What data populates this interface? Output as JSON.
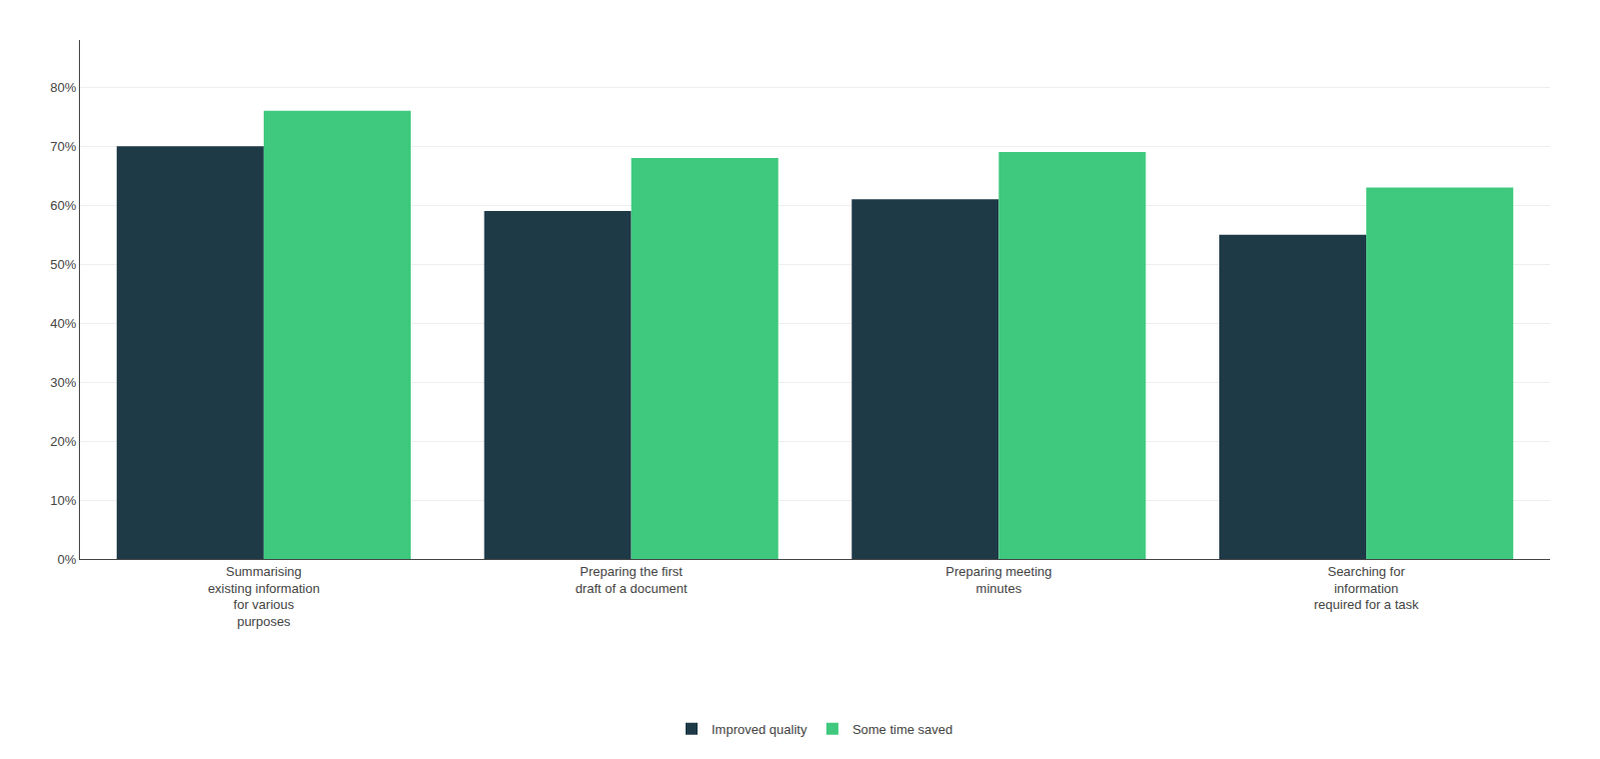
{
  "chart_data": {
    "type": "bar",
    "categories": [
      "Summarising\nexisting information\nfor various\npurposes",
      "Preparing the first\ndraft of a document",
      "Preparing meeting\nminutes",
      "Searching for\ninformation\nrequired for a task"
    ],
    "series": [
      {
        "name": "Improved quality",
        "color": "#1e3a47",
        "values": [
          0.7,
          0.59,
          0.61,
          0.55
        ]
      },
      {
        "name": "Some time saved",
        "color": "#3ec97e",
        "values": [
          0.76,
          0.68,
          0.69,
          0.63
        ]
      }
    ],
    "ylim": [
      0,
      0.88
    ],
    "yticks": [
      {
        "value": 0.0,
        "label": "0%"
      },
      {
        "value": 0.1,
        "label": "10%"
      },
      {
        "value": 0.2,
        "label": "20%"
      },
      {
        "value": 0.3,
        "label": "30%"
      },
      {
        "value": 0.4,
        "label": "40%"
      },
      {
        "value": 0.5,
        "label": "50%"
      },
      {
        "value": 0.6,
        "label": "60%"
      },
      {
        "value": 0.7,
        "label": "70%"
      },
      {
        "value": 0.8,
        "label": "80%"
      }
    ],
    "grid": true,
    "legend": "bottom"
  }
}
